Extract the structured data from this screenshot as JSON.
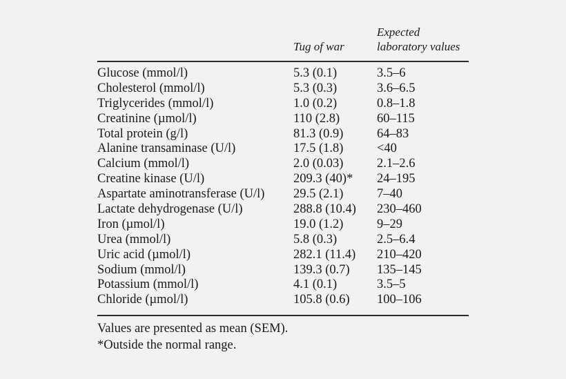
{
  "table": {
    "header": {
      "col2": "Tug of war",
      "col3_line1": "Expected",
      "col3_line2": "laboratory values"
    },
    "rows": [
      {
        "name": "Glucose (mmol/l)",
        "value": "5.3 (0.1)",
        "range": "3.5–6"
      },
      {
        "name": "Cholesterol (mmol/l)",
        "value": "5.3 (0.3)",
        "range": "3.6–6.5"
      },
      {
        "name": "Triglycerides (mmol/l)",
        "value": "1.0 (0.2)",
        "range": "0.8–1.8"
      },
      {
        "name": "Creatinine (µmol/l)",
        "value": "110 (2.8)",
        "range": "60–115"
      },
      {
        "name": "Total protein (g/l)",
        "value": "81.3 (0.9)",
        "range": "64–83"
      },
      {
        "name": "Alanine transaminase (U/l)",
        "value": "17.5 (1.8)",
        "range": "<40"
      },
      {
        "name": "Calcium (mmol/l)",
        "value": "2.0 (0.03)",
        "range": "2.1–2.6"
      },
      {
        "name": "Creatine kinase (U/l)",
        "value": "209.3 (40)*",
        "range": "24–195"
      },
      {
        "name": "Aspartate aminotransferase (U/l)",
        "value": "29.5 (2.1)",
        "range": "7–40"
      },
      {
        "name": "Lactate dehydrogenase (U/l)",
        "value": "288.8 (10.4)",
        "range": "230–460"
      },
      {
        "name": "Iron (µmol/l)",
        "value": "19.0 (1.2)",
        "range": "9–29"
      },
      {
        "name": "Urea (mmol/l)",
        "value": "5.8 (0.3)",
        "range": "2.5–6.4"
      },
      {
        "name": "Uric acid (µmol/l)",
        "value": "282.1 (11.4)",
        "range": "210–420"
      },
      {
        "name": "Sodium (mmol/l)",
        "value": "139.3 (0.7)",
        "range": "135–145"
      },
      {
        "name": "Potassium (mmol/l)",
        "value": "4.1 (0.1)",
        "range": "3.5–5"
      },
      {
        "name": "Chloride (µmol/l)",
        "value": "105.8 (0.6)",
        "range": "100–106"
      }
    ],
    "footnotes": [
      "Values are presented as mean (SEM).",
      "*Outside the normal range."
    ]
  }
}
